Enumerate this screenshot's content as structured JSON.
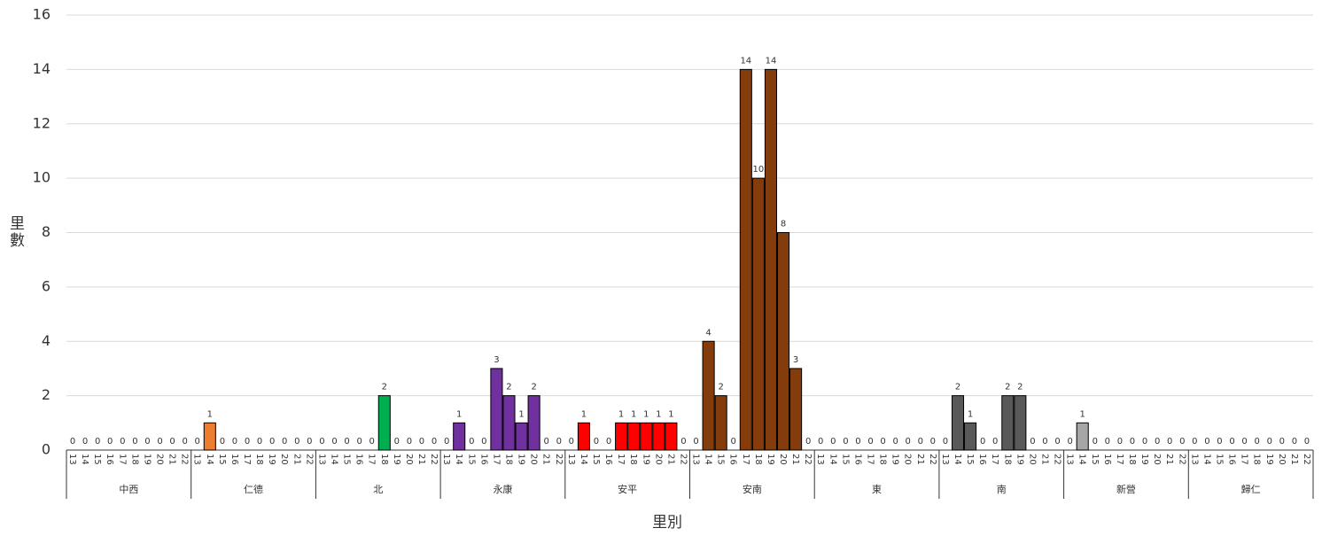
{
  "chart_data": {
    "type": "bar",
    "ylabel": "里數",
    "xlabel": "里別",
    "categories": [
      "13",
      "14",
      "15",
      "16",
      "17",
      "18",
      "19",
      "20",
      "21",
      "22"
    ],
    "ylim": [
      0,
      16
    ],
    "yticks": [
      0,
      2,
      4,
      6,
      8,
      10,
      12,
      14,
      16
    ],
    "grid": true,
    "groups": [
      {
        "name": "中西",
        "values": [
          0,
          0,
          0,
          0,
          0,
          0,
          0,
          0,
          0,
          0
        ]
      },
      {
        "name": "仁德",
        "color": "#ed7d31",
        "values": [
          0,
          1,
          0,
          0,
          0,
          0,
          0,
          0,
          0,
          0
        ]
      },
      {
        "name": "北",
        "color": "#00b050",
        "values": [
          0,
          0,
          0,
          0,
          0,
          2,
          0,
          0,
          0,
          0
        ]
      },
      {
        "name": "永康",
        "color": "#7030a0",
        "values": [
          0,
          1,
          0,
          0,
          3,
          2,
          1,
          2,
          0,
          0
        ]
      },
      {
        "name": "安平",
        "color": "#ff0000",
        "values": [
          0,
          1,
          0,
          0,
          1,
          1,
          1,
          1,
          1,
          0
        ]
      },
      {
        "name": "安南",
        "color": "#843c0c",
        "values": [
          0,
          4,
          2,
          0,
          14,
          10,
          14,
          8,
          3,
          0
        ]
      },
      {
        "name": "東",
        "values": [
          0,
          0,
          0,
          0,
          0,
          0,
          0,
          0,
          0,
          0
        ]
      },
      {
        "name": "南",
        "color": "#595959",
        "values": [
          0,
          2,
          1,
          0,
          0,
          2,
          2,
          0,
          0,
          0
        ]
      },
      {
        "name": "新營",
        "color": "#a6a6a6",
        "values": [
          0,
          1,
          0,
          0,
          0,
          0,
          0,
          0,
          0,
          0
        ]
      },
      {
        "name": "歸仁",
        "values": [
          0,
          0,
          0,
          0,
          0,
          0,
          0,
          0,
          0,
          0
        ]
      }
    ]
  }
}
